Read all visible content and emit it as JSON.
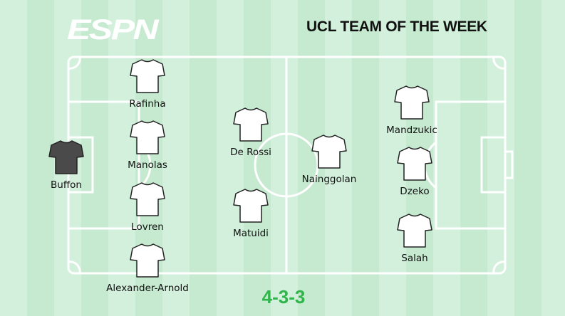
{
  "header": {
    "logo": "ESPN",
    "title": "UCL TEAM OF THE WEEK"
  },
  "formation": "4-3-3",
  "colors": {
    "shirt": "#ffffff",
    "goalkeeper_shirt": "#4a4a4a",
    "formation": "#2fb54a"
  },
  "players": [
    {
      "name": "Buffon",
      "role": "goalkeeper"
    },
    {
      "name": "Rafinha"
    },
    {
      "name": "Manolas"
    },
    {
      "name": "Lovren"
    },
    {
      "name": "Alexander-Arnold"
    },
    {
      "name": "De Rossi"
    },
    {
      "name": "Matuidi"
    },
    {
      "name": "Nainggolan"
    },
    {
      "name": "Mandzukic"
    },
    {
      "name": "Dzeko"
    },
    {
      "name": "Salah"
    }
  ]
}
